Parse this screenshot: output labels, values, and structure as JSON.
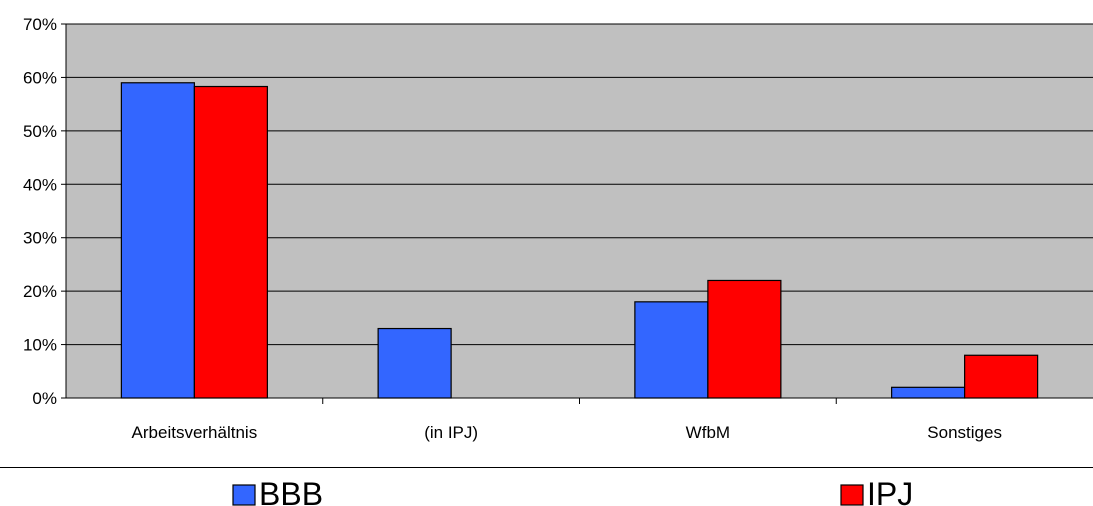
{
  "chart_data": {
    "type": "bar",
    "categories": [
      "Arbeitsverhältnis",
      "(in IPJ)",
      "WfbM",
      "Sonstiges"
    ],
    "series": [
      {
        "name": "BBB",
        "values": [
          59,
          13,
          18,
          2
        ],
        "color": "#3366FF"
      },
      {
        "name": "IPJ",
        "values": [
          58.3,
          null,
          22,
          8
        ],
        "color": "#FF0000"
      }
    ],
    "yticks": [
      "0%",
      "10%",
      "20%",
      "30%",
      "40%",
      "50%",
      "60%",
      "70%"
    ],
    "ylim": [
      0,
      70
    ],
    "plot_background": "#C0C0C0",
    "grid": true,
    "legend_position": "bottom"
  }
}
